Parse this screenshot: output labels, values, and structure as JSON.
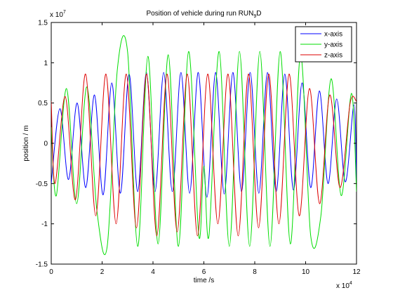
{
  "chart_data": {
    "type": "line",
    "title": "Position of vehicle during run RUN",
    "title_subscript": "9",
    "title_suffix": "D",
    "xlabel": "time /s",
    "ylabel": "position / m",
    "x_multiplier_base": "x 10",
    "x_multiplier_exp": "4",
    "y_multiplier_base": "x 10",
    "y_multiplier_exp": "7",
    "xlim": [
      0,
      12
    ],
    "ylim": [
      -1.5,
      1.5
    ],
    "x_ticks": [
      0,
      2,
      4,
      6,
      8,
      10,
      12
    ],
    "y_ticks": [
      -1.5,
      -1,
      -0.5,
      0,
      0.5,
      1,
      1.5
    ],
    "x_tick_labels": [
      "0",
      "2",
      "4",
      "6",
      "8",
      "10",
      "12"
    ],
    "y_tick_labels": [
      "-1.5",
      "-1",
      "-0.5",
      "0",
      "0.5",
      "1",
      "1.5"
    ],
    "grid": false,
    "legend_position": "top-right",
    "series": [
      {
        "name": "x-axis",
        "color": "#0000ff",
        "x": [
          0,
          0.34,
          0.68,
          1.02,
          1.36,
          1.7,
          2.04,
          2.38,
          2.72,
          3.06,
          3.4,
          3.74,
          4.08,
          4.42,
          4.76,
          5.1,
          5.44,
          5.78,
          6.12,
          6.46,
          6.8,
          7.14,
          7.48,
          7.82,
          8.16,
          8.5,
          8.84,
          9.18,
          9.52,
          9.86,
          10.2,
          10.54,
          10.88,
          11.22,
          11.56,
          11.9,
          12
        ],
        "y": [
          -0.5,
          0.43,
          -0.45,
          0.5,
          -0.55,
          0.6,
          -0.64,
          0.75,
          -0.62,
          0.86,
          -0.6,
          0.88,
          -0.6,
          0.88,
          -0.6,
          0.88,
          -0.62,
          0.88,
          -0.67,
          0.88,
          -0.63,
          0.88,
          -0.6,
          0.88,
          -0.62,
          0.88,
          -0.6,
          0.86,
          -0.58,
          0.75,
          -0.55,
          0.65,
          -0.5,
          0.55,
          -0.48,
          0.48,
          -0.48
        ]
      },
      {
        "name": "y-axis",
        "color": "#00dd00",
        "x": [
          0,
          0.2,
          0.6,
          1.0,
          1.4,
          1.8,
          2.2,
          2.6,
          3.0,
          3.4,
          3.8,
          4.2,
          4.6,
          5.0,
          5.4,
          5.8,
          6.0,
          6.2,
          6.6,
          7.0,
          7.4,
          7.8,
          8.2,
          8.6,
          9.0,
          9.4,
          9.8,
          10.2,
          10.6,
          11.0,
          11.4,
          11.8,
          12
        ],
        "y": [
          0.2,
          -0.65,
          0.68,
          -0.75,
          0.7,
          -0.85,
          -1.28,
          0.92,
          1.14,
          -1.28,
          1.08,
          -1.25,
          1.1,
          -1.28,
          1.14,
          -1.15,
          -0.28,
          -1.15,
          1.14,
          -1.28,
          1.14,
          -1.28,
          1.14,
          -1.28,
          1.14,
          -1.25,
          1.1,
          -1.15,
          -0.9,
          0.8,
          -0.65,
          0.62,
          -0.6
        ]
      },
      {
        "name": "z-axis",
        "color": "#dd0000",
        "x": [
          0,
          0.15,
          0.55,
          0.95,
          1.35,
          1.75,
          2.15,
          2.55,
          2.95,
          3.35,
          3.75,
          4.15,
          4.55,
          4.95,
          5.35,
          5.75,
          6.15,
          6.55,
          6.95,
          7.35,
          7.75,
          8.15,
          8.55,
          8.95,
          9.35,
          9.75,
          10.15,
          10.55,
          10.95,
          11.35,
          11.75,
          12
        ],
        "y": [
          0.52,
          -0.5,
          0.58,
          -0.7,
          0.86,
          -0.9,
          0.86,
          -1.0,
          0.86,
          -1.05,
          0.86,
          -1.15,
          0.86,
          -1.1,
          0.86,
          -1.15,
          0.86,
          -1.0,
          0.86,
          -1.15,
          0.86,
          -1.05,
          0.86,
          -1.0,
          0.86,
          -0.9,
          0.68,
          -0.75,
          0.6,
          -0.55,
          0.5,
          0.52
        ]
      }
    ]
  }
}
